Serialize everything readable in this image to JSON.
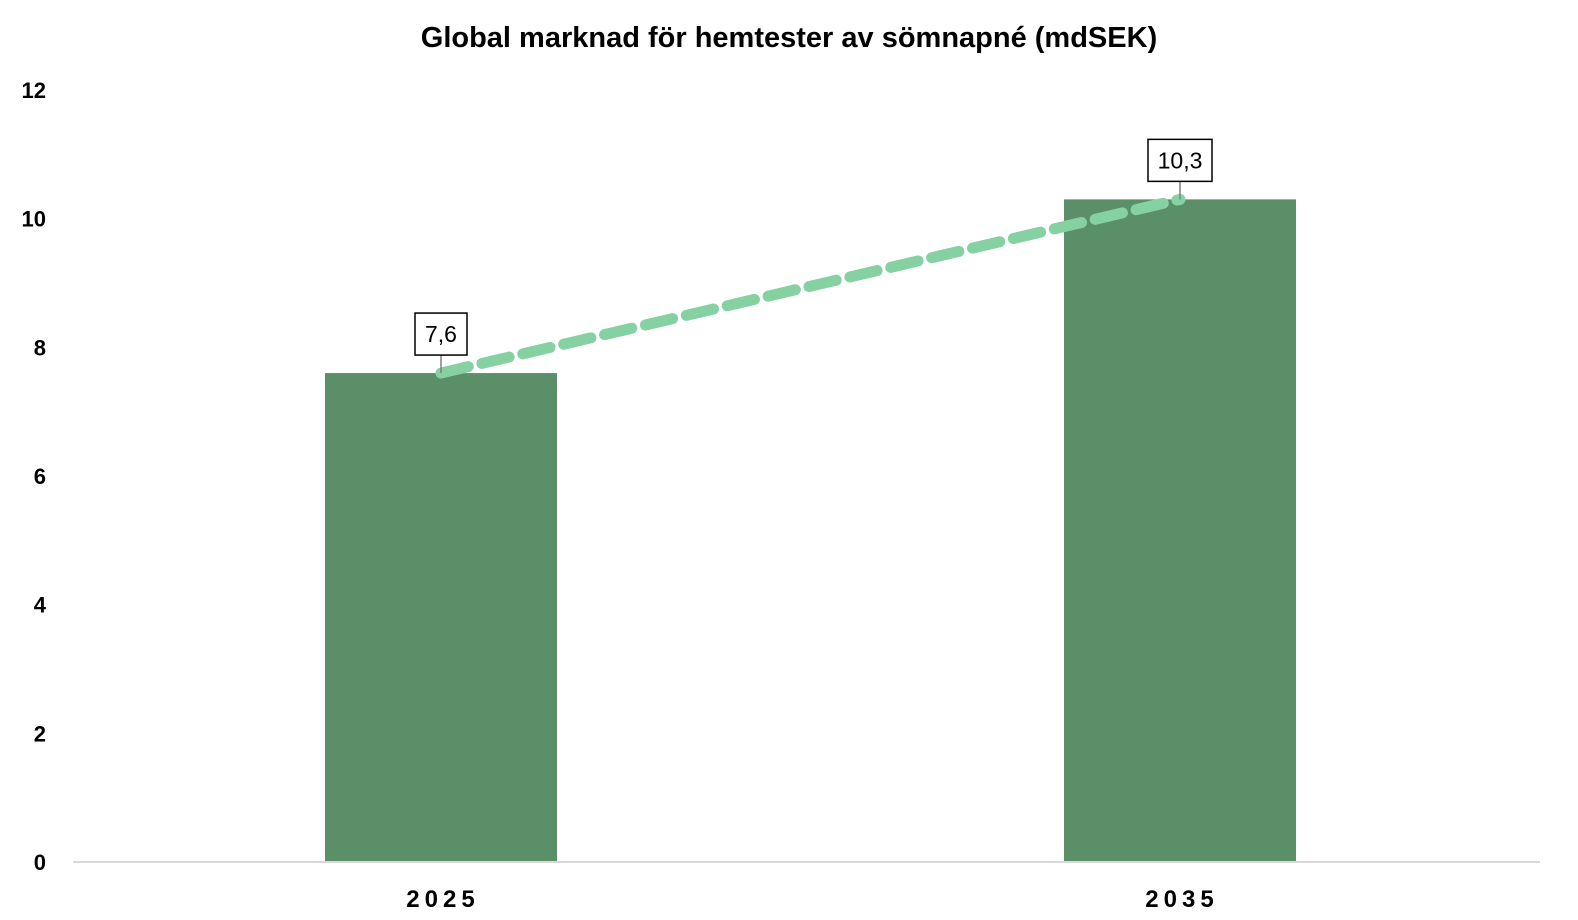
{
  "chart_data": {
    "type": "bar",
    "title": "Global marknad för hemtester av sömnapné (mdSEK)",
    "categories": [
      "2025",
      "2035"
    ],
    "values": [
      7.6,
      10.3
    ],
    "data_labels": [
      "7,6",
      "10,3"
    ],
    "y_ticks": [
      "0",
      "2",
      "4",
      "6",
      "8",
      "10",
      "12"
    ],
    "ylim": [
      0,
      12
    ],
    "xlabel": "",
    "ylabel": "",
    "grid": false,
    "legend": "none",
    "trend_line": "dashed",
    "colors": {
      "bar": "#5b8f68",
      "trend": "#86d1a2",
      "axis": "#d9d9d9"
    }
  }
}
